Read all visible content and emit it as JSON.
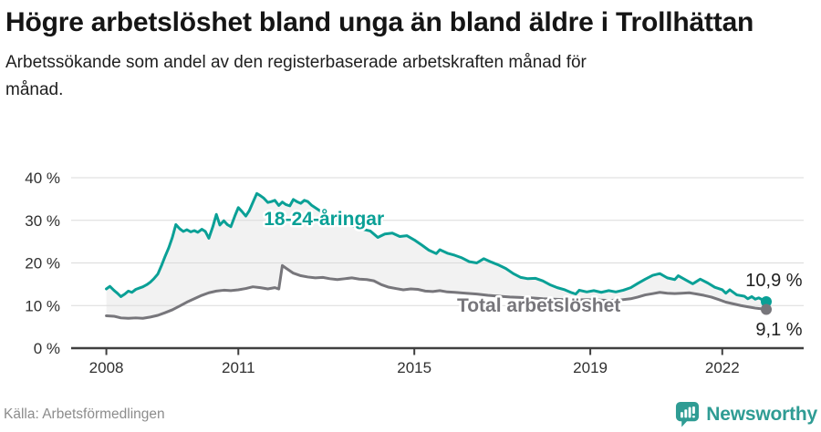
{
  "header": {
    "title": "Högre arbetslöshet bland unga än bland äldre i Trollhättan",
    "subtitle": "Arbetssökande som andel av den registerbaserade arbetskraften månad för månad."
  },
  "chart_data": {
    "type": "line",
    "unit": "%",
    "grid": "horizontal",
    "band_fill_between_series": true,
    "band_color": "#f2f2f2",
    "grid_color": "#dbdbdb",
    "axis_color": "#3f3f3f",
    "tick_label_color": "#303030",
    "end_label_color": "#1f1f1f",
    "x_axis": {
      "range": [
        2007.2,
        2023.85
      ],
      "ticks": [
        2008,
        2011,
        2015,
        2019,
        2022
      ]
    },
    "y_axis": {
      "range": [
        0,
        43
      ],
      "ticks": [
        0,
        10,
        20,
        30,
        40
      ],
      "tick_suffix": " %"
    },
    "series": [
      {
        "id": "youth",
        "name": "18-24-åringar",
        "color": "#0aa096",
        "label_pos": [
          2011.58,
          28.9
        ],
        "end_value": 10.9,
        "end_label": "10,9 %",
        "end_label_pos": [
          2023.82,
          14.6
        ],
        "points": [
          [
            2008.0,
            13.9
          ],
          [
            2008.08,
            14.5
          ],
          [
            2008.17,
            13.6
          ],
          [
            2008.25,
            12.9
          ],
          [
            2008.33,
            12.1
          ],
          [
            2008.42,
            12.7
          ],
          [
            2008.5,
            13.4
          ],
          [
            2008.58,
            13.1
          ],
          [
            2008.67,
            13.8
          ],
          [
            2008.75,
            14.1
          ],
          [
            2008.83,
            14.4
          ],
          [
            2008.92,
            14.9
          ],
          [
            2009.0,
            15.5
          ],
          [
            2009.08,
            16.3
          ],
          [
            2009.17,
            17.4
          ],
          [
            2009.25,
            19.3
          ],
          [
            2009.33,
            21.4
          ],
          [
            2009.42,
            23.6
          ],
          [
            2009.5,
            26.0
          ],
          [
            2009.58,
            29.0
          ],
          [
            2009.67,
            28.0
          ],
          [
            2009.75,
            27.4
          ],
          [
            2009.83,
            27.8
          ],
          [
            2009.92,
            27.3
          ],
          [
            2010.0,
            27.6
          ],
          [
            2010.08,
            27.2
          ],
          [
            2010.17,
            27.9
          ],
          [
            2010.25,
            27.4
          ],
          [
            2010.33,
            25.8
          ],
          [
            2010.42,
            28.5
          ],
          [
            2010.5,
            31.4
          ],
          [
            2010.58,
            28.9
          ],
          [
            2010.67,
            29.9
          ],
          [
            2010.75,
            29.0
          ],
          [
            2010.83,
            28.5
          ],
          [
            2010.92,
            31.0
          ],
          [
            2011.0,
            33.0
          ],
          [
            2011.08,
            32.1
          ],
          [
            2011.17,
            31.0
          ],
          [
            2011.25,
            32.3
          ],
          [
            2011.33,
            34.2
          ],
          [
            2011.42,
            36.3
          ],
          [
            2011.5,
            35.8
          ],
          [
            2011.58,
            35.2
          ],
          [
            2011.67,
            34.2
          ],
          [
            2011.75,
            34.4
          ],
          [
            2011.83,
            34.7
          ],
          [
            2011.92,
            33.5
          ],
          [
            2012.0,
            34.3
          ],
          [
            2012.08,
            33.7
          ],
          [
            2012.17,
            33.4
          ],
          [
            2012.25,
            34.9
          ],
          [
            2012.33,
            34.4
          ],
          [
            2012.42,
            34.0
          ],
          [
            2012.5,
            34.7
          ],
          [
            2012.58,
            34.4
          ],
          [
            2012.67,
            33.5
          ],
          [
            2012.83,
            32.4
          ],
          [
            2013.0,
            31.4
          ],
          [
            2013.17,
            30.4
          ],
          [
            2013.33,
            29.6
          ],
          [
            2013.5,
            29.0
          ],
          [
            2013.67,
            28.4
          ],
          [
            2013.83,
            27.9
          ],
          [
            2014.0,
            27.5
          ],
          [
            2014.17,
            26.0
          ],
          [
            2014.33,
            26.8
          ],
          [
            2014.5,
            27.0
          ],
          [
            2014.67,
            26.2
          ],
          [
            2014.83,
            26.4
          ],
          [
            2015.0,
            25.4
          ],
          [
            2015.17,
            24.2
          ],
          [
            2015.33,
            23.0
          ],
          [
            2015.5,
            22.2
          ],
          [
            2015.58,
            23.1
          ],
          [
            2015.75,
            22.3
          ],
          [
            2015.92,
            21.8
          ],
          [
            2016.08,
            21.2
          ],
          [
            2016.25,
            20.3
          ],
          [
            2016.42,
            20.0
          ],
          [
            2016.58,
            21.0
          ],
          [
            2016.75,
            20.2
          ],
          [
            2016.92,
            19.5
          ],
          [
            2017.08,
            18.7
          ],
          [
            2017.25,
            17.5
          ],
          [
            2017.42,
            16.6
          ],
          [
            2017.58,
            16.3
          ],
          [
            2017.75,
            16.4
          ],
          [
            2017.92,
            15.8
          ],
          [
            2018.08,
            14.9
          ],
          [
            2018.25,
            14.2
          ],
          [
            2018.42,
            13.7
          ],
          [
            2018.58,
            13.0
          ],
          [
            2018.67,
            12.7
          ],
          [
            2018.75,
            13.6
          ],
          [
            2018.92,
            13.2
          ],
          [
            2019.08,
            13.5
          ],
          [
            2019.25,
            13.1
          ],
          [
            2019.42,
            13.5
          ],
          [
            2019.58,
            13.2
          ],
          [
            2019.75,
            13.6
          ],
          [
            2019.92,
            14.2
          ],
          [
            2020.08,
            15.2
          ],
          [
            2020.25,
            16.2
          ],
          [
            2020.42,
            17.1
          ],
          [
            2020.58,
            17.5
          ],
          [
            2020.75,
            16.5
          ],
          [
            2020.92,
            16.1
          ],
          [
            2021.0,
            17.0
          ],
          [
            2021.17,
            16.0
          ],
          [
            2021.33,
            15.1
          ],
          [
            2021.5,
            16.2
          ],
          [
            2021.67,
            15.3
          ],
          [
            2021.83,
            14.3
          ],
          [
            2022.0,
            13.7
          ],
          [
            2022.08,
            12.9
          ],
          [
            2022.17,
            13.7
          ],
          [
            2022.33,
            12.5
          ],
          [
            2022.5,
            12.2
          ],
          [
            2022.58,
            11.6
          ],
          [
            2022.67,
            12.1
          ],
          [
            2022.75,
            11.5
          ],
          [
            2022.83,
            11.8
          ],
          [
            2022.92,
            11.3
          ],
          [
            2023.0,
            10.9
          ]
        ]
      },
      {
        "id": "total",
        "name": "Total arbetslöshet",
        "color": "#77767b",
        "label_pos": [
          2015.97,
          8.6
        ],
        "end_value": 9.1,
        "end_label": "9,1 %",
        "end_label_pos": [
          2023.82,
          3.0
        ],
        "points": [
          [
            2008.0,
            7.6
          ],
          [
            2008.17,
            7.5
          ],
          [
            2008.33,
            7.1
          ],
          [
            2008.5,
            7.0
          ],
          [
            2008.67,
            7.1
          ],
          [
            2008.83,
            7.0
          ],
          [
            2009.0,
            7.3
          ],
          [
            2009.17,
            7.7
          ],
          [
            2009.33,
            8.3
          ],
          [
            2009.5,
            9.0
          ],
          [
            2009.67,
            9.9
          ],
          [
            2009.83,
            10.8
          ],
          [
            2010.0,
            11.6
          ],
          [
            2010.17,
            12.4
          ],
          [
            2010.33,
            13.0
          ],
          [
            2010.5,
            13.4
          ],
          [
            2010.67,
            13.6
          ],
          [
            2010.83,
            13.5
          ],
          [
            2011.0,
            13.7
          ],
          [
            2011.17,
            14.0
          ],
          [
            2011.33,
            14.4
          ],
          [
            2011.5,
            14.2
          ],
          [
            2011.67,
            13.9
          ],
          [
            2011.83,
            14.2
          ],
          [
            2011.92,
            13.9
          ],
          [
            2012.0,
            19.4
          ],
          [
            2012.08,
            18.8
          ],
          [
            2012.25,
            17.6
          ],
          [
            2012.42,
            17.0
          ],
          [
            2012.58,
            16.7
          ],
          [
            2012.75,
            16.5
          ],
          [
            2012.92,
            16.6
          ],
          [
            2013.08,
            16.3
          ],
          [
            2013.25,
            16.1
          ],
          [
            2013.42,
            16.3
          ],
          [
            2013.58,
            16.5
          ],
          [
            2013.75,
            16.2
          ],
          [
            2013.92,
            16.1
          ],
          [
            2014.08,
            15.8
          ],
          [
            2014.25,
            14.9
          ],
          [
            2014.42,
            14.3
          ],
          [
            2014.58,
            14.0
          ],
          [
            2014.75,
            13.7
          ],
          [
            2014.92,
            13.9
          ],
          [
            2015.08,
            13.8
          ],
          [
            2015.25,
            13.4
          ],
          [
            2015.42,
            13.3
          ],
          [
            2015.58,
            13.5
          ],
          [
            2015.75,
            13.2
          ],
          [
            2015.92,
            13.1
          ],
          [
            2016.17,
            12.9
          ],
          [
            2016.42,
            12.7
          ],
          [
            2016.67,
            12.4
          ],
          [
            2016.92,
            12.2
          ],
          [
            2017.17,
            12.0
          ],
          [
            2017.42,
            11.9
          ],
          [
            2017.67,
            11.8
          ],
          [
            2017.92,
            11.6
          ],
          [
            2018.17,
            11.5
          ],
          [
            2018.42,
            11.4
          ],
          [
            2018.67,
            11.3
          ],
          [
            2018.92,
            11.4
          ],
          [
            2019.17,
            11.3
          ],
          [
            2019.42,
            11.2
          ],
          [
            2019.67,
            11.3
          ],
          [
            2019.92,
            11.6
          ],
          [
            2020.08,
            12.0
          ],
          [
            2020.25,
            12.5
          ],
          [
            2020.42,
            12.8
          ],
          [
            2020.58,
            13.1
          ],
          [
            2020.75,
            12.9
          ],
          [
            2020.92,
            12.8
          ],
          [
            2021.08,
            12.9
          ],
          [
            2021.25,
            13.0
          ],
          [
            2021.42,
            12.7
          ],
          [
            2021.58,
            12.4
          ],
          [
            2021.75,
            12.0
          ],
          [
            2021.92,
            11.4
          ],
          [
            2022.08,
            10.8
          ],
          [
            2022.25,
            10.4
          ],
          [
            2022.42,
            10.0
          ],
          [
            2022.58,
            9.7
          ],
          [
            2022.75,
            9.4
          ],
          [
            2022.92,
            9.2
          ],
          [
            2023.0,
            9.1
          ]
        ]
      }
    ]
  },
  "footer": {
    "source": "Källa: Arbetsförmedlingen",
    "brand": "Newsworthy"
  }
}
